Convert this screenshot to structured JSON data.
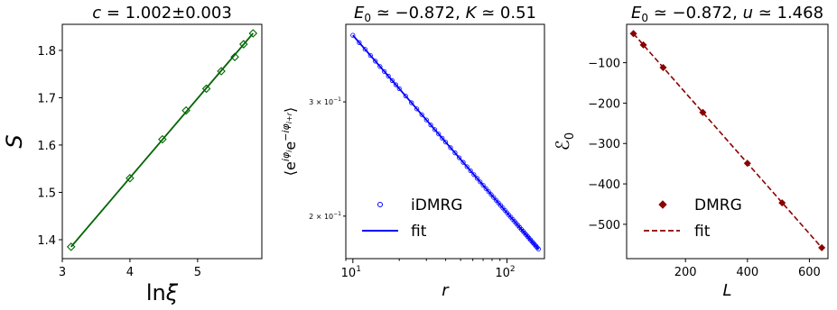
{
  "chart_data": [
    {
      "type": "line",
      "title": "c = 1.002±0.003",
      "xlabel": "lnξ",
      "ylabel": "S",
      "xlim": [
        3.0,
        5.95
      ],
      "ylim": [
        1.36,
        1.855
      ],
      "xticks": [
        3,
        4,
        5
      ],
      "yticks": [
        1.4,
        1.5,
        1.6,
        1.7,
        1.8
      ],
      "color": "#006400",
      "series": [
        {
          "marker": "diamond-open",
          "x": [
            3.13,
            4.0,
            4.48,
            4.83,
            5.13,
            5.35,
            5.55,
            5.68,
            5.82
          ],
          "y": [
            1.385,
            1.53,
            1.612,
            1.673,
            1.719,
            1.756,
            1.786,
            1.813,
            1.836
          ]
        },
        {
          "marker": "none",
          "x": [
            3.13,
            5.82
          ],
          "y": [
            1.385,
            1.836
          ]
        }
      ]
    },
    {
      "type": "scatter",
      "title": "E0 ≃ −0.872, K ≃ 0.51",
      "xlabel": "r",
      "ylabel": "⟨e^{iφ_i} e^{−iφ_{i+r}}⟩",
      "xscale": "log",
      "yscale": "log",
      "xlim": [
        9.0,
        175
      ],
      "ylim": [
        0.172,
        0.395
      ],
      "xticks": [
        10,
        100
      ],
      "xtick_labels": [
        "10^1",
        "10^2"
      ],
      "yticks": [
        0.3,
        0.2
      ],
      "ytick_labels": [
        "3 × 10^−1",
        "2 × 10^−1"
      ],
      "legend": "center-left",
      "color": "#0000ff",
      "series": [
        {
          "name": "iDMRG",
          "marker": "circle-open",
          "x_range": [
            10,
            160
          ],
          "y_at_x": [
            0.38,
            0.178
          ]
        },
        {
          "name": "fit",
          "marker": "none",
          "x": [
            10,
            160
          ],
          "y": [
            0.38,
            0.178
          ]
        }
      ]
    },
    {
      "type": "line",
      "title": "E0 ≃ −0.872, u ≃ 1.468",
      "xlabel": "L",
      "ylabel": "ℰ0",
      "xlim": [
        10,
        660
      ],
      "ylim": [
        -585,
        -5
      ],
      "xticks": [
        200,
        400,
        600
      ],
      "yticks": [
        -100,
        -200,
        -300,
        -400,
        -500
      ],
      "legend": "lower-left",
      "color": "#8b0000",
      "series": [
        {
          "name": "DMRG",
          "marker": "diamond-filled",
          "x": [
            32,
            64,
            128,
            256,
            400,
            512,
            640
          ],
          "y": [
            -28,
            -56,
            -112,
            -223,
            -349,
            -447,
            -558
          ]
        },
        {
          "name": "fit",
          "marker": "none",
          "dash": "dashed",
          "x": [
            32,
            640
          ],
          "y": [
            -28,
            -558
          ]
        }
      ]
    }
  ]
}
